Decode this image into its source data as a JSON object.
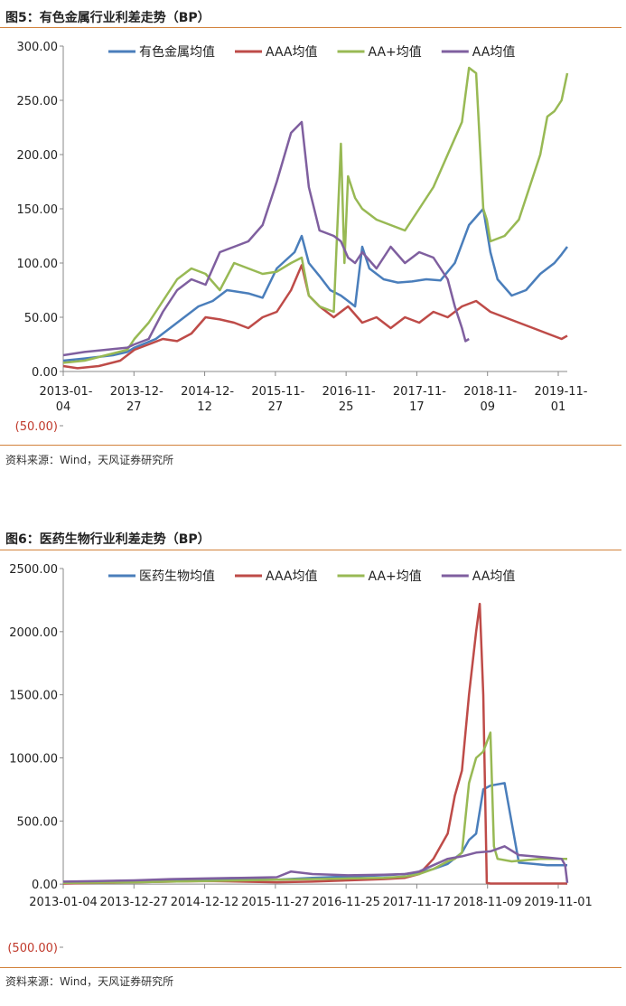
{
  "chart_data": [
    {
      "type": "line",
      "title": "图5：有色金属行业利差走势（BP）",
      "source": "资料来源：Wind，天风证券研究所",
      "y_ticks": [
        "300.00",
        "250.00",
        "200.00",
        "150.00",
        "100.00",
        "50.00",
        "0.00",
        "(50.00)"
      ],
      "ylim": [
        -50,
        300
      ],
      "x_ticks": [
        {
          "line1": "2013-01-",
          "line2": "04"
        },
        {
          "line1": "2013-12-",
          "line2": "27"
        },
        {
          "line1": "2014-12-",
          "line2": "12"
        },
        {
          "line1": "2015-11-",
          "line2": "27"
        },
        {
          "line1": "2016-11-",
          "line2": "25"
        },
        {
          "line1": "2017-11-",
          "line2": "17"
        },
        {
          "line1": "2018-11-",
          "line2": "09"
        },
        {
          "line1": "2019-11-",
          "line2": "01"
        }
      ],
      "xlim": [
        2013.0,
        2020.08
      ],
      "legend_position": "top",
      "series": [
        {
          "name": "有色金属均值",
          "color": "#4a7ebb",
          "x": [
            2013.0,
            2013.3,
            2013.7,
            2013.9,
            2014.0,
            2014.3,
            2014.6,
            2014.9,
            2015.1,
            2015.3,
            2015.6,
            2015.8,
            2016.0,
            2016.25,
            2016.35,
            2016.45,
            2016.6,
            2016.75,
            2016.9,
            2017.0,
            2017.1,
            2017.2,
            2017.3,
            2017.5,
            2017.7,
            2017.9,
            2018.1,
            2018.3,
            2018.5,
            2018.7,
            2018.9,
            2019.0,
            2019.1,
            2019.3,
            2019.5,
            2019.7,
            2019.9,
            2020.0,
            2020.08
          ],
          "y": [
            10,
            12,
            15,
            18,
            22,
            30,
            45,
            60,
            65,
            75,
            72,
            68,
            95,
            110,
            125,
            100,
            88,
            75,
            70,
            65,
            60,
            115,
            95,
            85,
            82,
            83,
            85,
            84,
            100,
            135,
            150,
            110,
            85,
            70,
            75,
            90,
            100,
            108,
            115
          ]
        },
        {
          "name": "AAA均值",
          "color": "#be4b48",
          "x": [
            2013.0,
            2013.2,
            2013.5,
            2013.8,
            2014.0,
            2014.2,
            2014.4,
            2014.6,
            2014.8,
            2015.0,
            2015.2,
            2015.4,
            2015.6,
            2015.8,
            2016.0,
            2016.2,
            2016.35,
            2016.45,
            2016.6,
            2016.8,
            2017.0,
            2017.2,
            2017.4,
            2017.6,
            2017.8,
            2018.0,
            2018.2,
            2018.4,
            2018.6,
            2018.8,
            2019.0,
            2019.2,
            2019.4,
            2019.6,
            2019.8,
            2020.0,
            2020.08
          ],
          "y": [
            5,
            3,
            5,
            10,
            20,
            25,
            30,
            28,
            35,
            50,
            48,
            45,
            40,
            50,
            55,
            75,
            98,
            70,
            60,
            50,
            60,
            45,
            50,
            40,
            50,
            45,
            55,
            50,
            60,
            65,
            55,
            50,
            45,
            40,
            35,
            30,
            33
          ]
        },
        {
          "name": "AA+均值",
          "color": "#98b954",
          "x": [
            2013.0,
            2013.3,
            2013.6,
            2013.9,
            2014.0,
            2014.2,
            2014.4,
            2014.6,
            2014.8,
            2015.0,
            2015.2,
            2015.4,
            2015.6,
            2015.8,
            2016.0,
            2016.2,
            2016.35,
            2016.45,
            2016.6,
            2016.8,
            2016.9,
            2016.95,
            2017.0,
            2017.1,
            2017.2,
            2017.4,
            2017.6,
            2017.8,
            2017.9,
            2018.0,
            2018.2,
            2018.4,
            2018.6,
            2018.7,
            2018.8,
            2018.9,
            2018.95,
            2019.0,
            2019.2,
            2019.4,
            2019.6,
            2019.7,
            2019.8,
            2019.9,
            2020.0,
            2020.08
          ],
          "y": [
            8,
            10,
            15,
            20,
            30,
            45,
            65,
            85,
            95,
            90,
            75,
            100,
            95,
            90,
            92,
            100,
            105,
            70,
            60,
            55,
            210,
            100,
            180,
            160,
            150,
            140,
            135,
            130,
            140,
            150,
            170,
            200,
            230,
            280,
            275,
            150,
            140,
            120,
            125,
            140,
            180,
            200,
            235,
            240,
            250,
            275
          ]
        },
        {
          "name": "AA均值",
          "color": "#7f5f9f",
          "x": [
            2013.0,
            2013.3,
            2013.6,
            2013.9,
            2014.0,
            2014.2,
            2014.4,
            2014.6,
            2014.8,
            2015.0,
            2015.2,
            2015.4,
            2015.6,
            2015.8,
            2016.0,
            2016.2,
            2016.35,
            2016.45,
            2016.6,
            2016.8,
            2016.9,
            2017.0,
            2017.1,
            2017.2,
            2017.4,
            2017.6,
            2017.8,
            2018.0,
            2018.2,
            2018.4,
            2018.5,
            2018.6,
            2018.65,
            2018.7
          ],
          "y": [
            15,
            18,
            20,
            22,
            25,
            30,
            55,
            75,
            85,
            80,
            110,
            115,
            120,
            135,
            175,
            220,
            230,
            170,
            130,
            125,
            120,
            105,
            100,
            110,
            95,
            115,
            100,
            110,
            105,
            85,
            60,
            40,
            28,
            30
          ]
        }
      ]
    },
    {
      "type": "line",
      "title": "图6：医药生物行业利差走势（BP）",
      "source": "资料来源：Wind，天风证券研究所",
      "y_ticks": [
        "2500.00",
        "2000.00",
        "1500.00",
        "1000.00",
        "500.00",
        "0.00",
        "(500.00)"
      ],
      "ylim": [
        -500,
        2500
      ],
      "x_ticks": [
        {
          "line1": "2013-01-04",
          "line2": ""
        },
        {
          "line1": "2013-12-27",
          "line2": ""
        },
        {
          "line1": "2014-12-12",
          "line2": ""
        },
        {
          "line1": "2015-11-27",
          "line2": ""
        },
        {
          "line1": "2016-11-25",
          "line2": ""
        },
        {
          "line1": "2017-11-17",
          "line2": ""
        },
        {
          "line1": "2018-11-09",
          "line2": ""
        },
        {
          "line1": "2019-11-01",
          "line2": ""
        }
      ],
      "xlim": [
        2013.0,
        2020.08
      ],
      "legend_position": "top",
      "series": [
        {
          "name": "医药生物均值",
          "color": "#4a7ebb",
          "x": [
            2013.0,
            2013.5,
            2014.0,
            2014.5,
            2015.0,
            2015.5,
            2016.0,
            2016.5,
            2017.0,
            2017.5,
            2017.8,
            2018.0,
            2018.2,
            2018.4,
            2018.6,
            2018.7,
            2018.8,
            2018.9,
            2019.0,
            2019.2,
            2019.4,
            2019.6,
            2019.8,
            2020.0,
            2020.08
          ],
          "y": [
            15,
            18,
            20,
            30,
            35,
            40,
            35,
            50,
            60,
            70,
            80,
            90,
            120,
            160,
            250,
            350,
            400,
            750,
            780,
            800,
            170,
            160,
            150,
            150,
            150
          ]
        },
        {
          "name": "AAA均值",
          "color": "#be4b48",
          "x": [
            2013.0,
            2013.5,
            2014.0,
            2014.5,
            2015.0,
            2015.5,
            2016.0,
            2016.5,
            2017.0,
            2017.5,
            2017.8,
            2018.0,
            2018.2,
            2018.4,
            2018.5,
            2018.6,
            2018.7,
            2018.8,
            2018.85,
            2018.9,
            2018.95,
            2019.0,
            2019.5,
            2020.0,
            2020.08
          ],
          "y": [
            5,
            10,
            15,
            20,
            25,
            20,
            15,
            20,
            30,
            40,
            50,
            80,
            200,
            400,
            700,
            900,
            1500,
            2000,
            2220,
            1500,
            10,
            5,
            5,
            5,
            5
          ]
        },
        {
          "name": "AA+均值",
          "color": "#98b954",
          "x": [
            2013.0,
            2013.5,
            2014.0,
            2014.5,
            2015.0,
            2015.5,
            2016.0,
            2016.5,
            2017.0,
            2017.5,
            2017.8,
            2018.0,
            2018.2,
            2018.4,
            2018.5,
            2018.6,
            2018.7,
            2018.8,
            2018.9,
            2019.0,
            2019.05,
            2019.1,
            2019.3,
            2019.5,
            2019.7,
            2019.9,
            2020.0,
            2020.08
          ],
          "y": [
            10,
            12,
            15,
            20,
            25,
            30,
            35,
            40,
            45,
            50,
            60,
            80,
            120,
            180,
            200,
            250,
            800,
            1000,
            1050,
            1200,
            300,
            200,
            180,
            190,
            200,
            200,
            200,
            200
          ]
        },
        {
          "name": "AA均值",
          "color": "#7f5f9f",
          "x": [
            2013.0,
            2013.5,
            2014.0,
            2014.5,
            2015.0,
            2015.5,
            2016.0,
            2016.2,
            2016.5,
            2017.0,
            2017.5,
            2017.8,
            2018.0,
            2018.2,
            2018.4,
            2018.6,
            2018.8,
            2019.0,
            2019.2,
            2019.4,
            2019.6,
            2019.8,
            2020.0,
            2020.05,
            2020.08
          ],
          "y": [
            20,
            25,
            30,
            40,
            45,
            50,
            55,
            100,
            80,
            70,
            75,
            80,
            100,
            150,
            200,
            220,
            250,
            260,
            300,
            230,
            220,
            210,
            200,
            150,
            10
          ]
        }
      ]
    }
  ]
}
